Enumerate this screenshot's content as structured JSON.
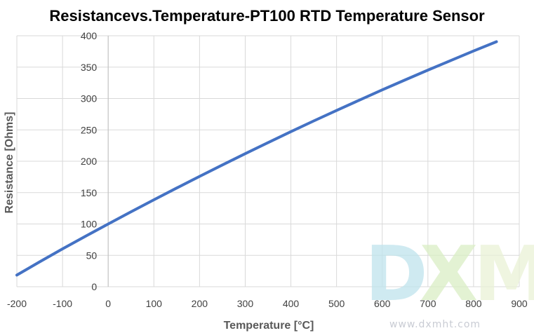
{
  "chart_data": {
    "type": "line",
    "title": "Resistancevs.Temperature-PT100 RTD Temperature Sensor",
    "xlabel": "Temperature [°C]",
    "ylabel": "Resistance [Ohms]",
    "xlim": [
      -200,
      900
    ],
    "ylim": [
      0,
      400
    ],
    "xticks": [
      -200,
      -100,
      0,
      100,
      200,
      300,
      400,
      500,
      600,
      700,
      800,
      900
    ],
    "yticks": [
      0,
      50,
      100,
      150,
      200,
      250,
      300,
      350,
      400
    ],
    "grid": true,
    "legend": "none",
    "series": [
      {
        "color": "#4472c4",
        "x": [
          -200,
          -150,
          -100,
          -50,
          0,
          50,
          100,
          150,
          200,
          250,
          300,
          350,
          400,
          450,
          500,
          550,
          600,
          650,
          700,
          750,
          800,
          850
        ],
        "y": [
          18.5,
          39.7,
          60.3,
          80.3,
          100.0,
          119.4,
          138.5,
          157.3,
          175.9,
          194.1,
          212.1,
          229.7,
          247.1,
          264.2,
          280.9,
          297.4,
          313.7,
          329.6,
          345.3,
          360.6,
          375.7,
          390.5
        ]
      }
    ]
  },
  "watermark": {
    "letters": [
      "D",
      "X",
      "M"
    ],
    "url": "www.dxmht.com",
    "colors": [
      "#bfe3ec",
      "#d9eec4",
      "#e9f2d6"
    ]
  }
}
